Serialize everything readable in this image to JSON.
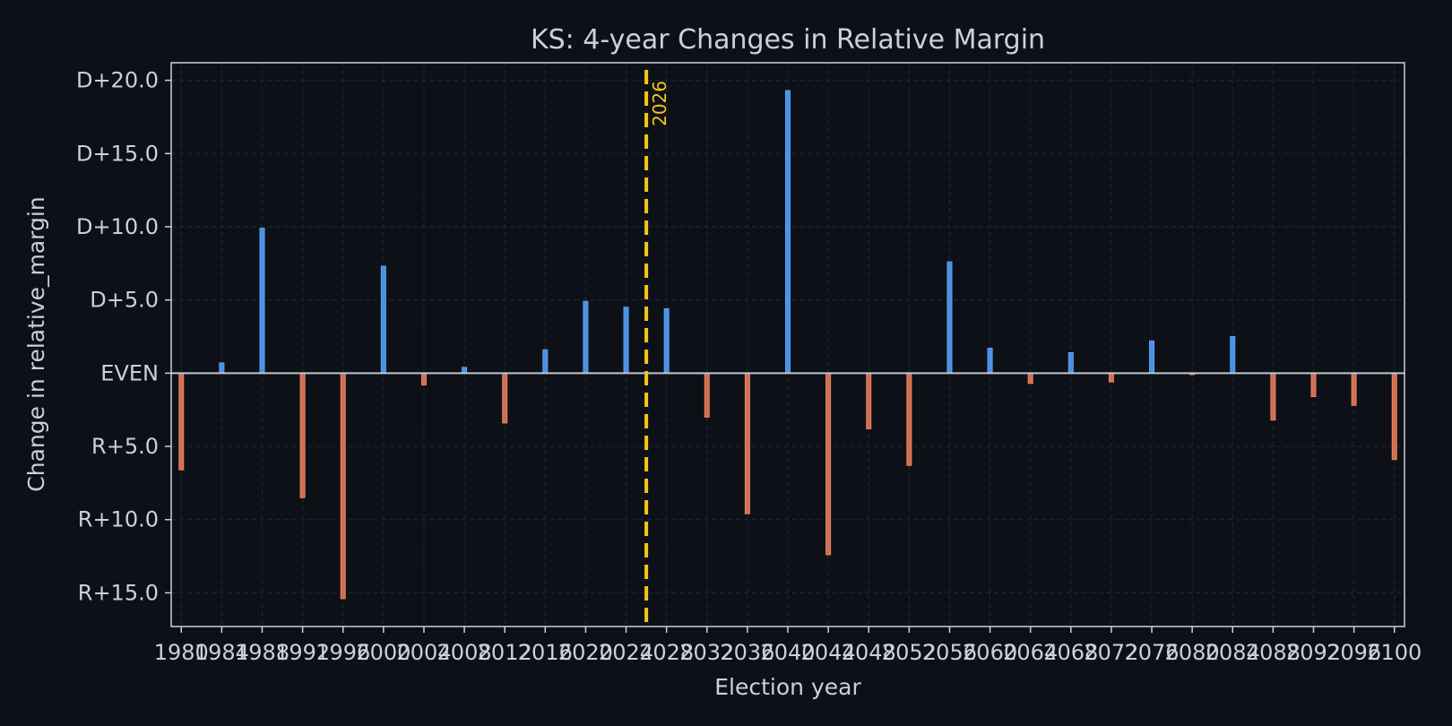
{
  "chart_data": {
    "type": "bar",
    "title": "KS: 4-year Changes in Relative Margin",
    "xlabel": "Election year",
    "ylabel": "Change in relative_margin",
    "x": [
      1980,
      1984,
      1988,
      1992,
      1996,
      2000,
      2004,
      2008,
      2012,
      2016,
      2020,
      2024,
      2028,
      2032,
      2036,
      2040,
      2044,
      2048,
      2052,
      2056,
      2060,
      2064,
      2068,
      2072,
      2076,
      2080,
      2084,
      2088,
      2092,
      2096,
      2100
    ],
    "values": [
      -6.6,
      0.7,
      9.9,
      -8.5,
      -15.4,
      7.3,
      -0.8,
      0.4,
      -3.4,
      1.6,
      4.9,
      4.5,
      4.4,
      -3.0,
      -9.6,
      19.3,
      -12.4,
      -3.8,
      -6.3,
      7.6,
      1.7,
      -0.7,
      1.4,
      -0.6,
      2.2,
      -0.1,
      2.5,
      -3.2,
      -1.6,
      -2.2,
      -5.9
    ],
    "xlim": [
      1979,
      2101
    ],
    "ylim": [
      -17.3,
      21.2
    ],
    "yticks": [
      -15,
      -10,
      -5,
      0,
      5,
      10,
      15,
      20
    ],
    "ytick_labels": [
      "R+15.0",
      "R+10.0",
      "R+5.0",
      "EVEN",
      "D+5.0",
      "D+10.0",
      "D+15.0",
      "D+20.0"
    ],
    "xtick_labels": [
      "1980",
      "1984",
      "1988",
      "1992",
      "1996",
      "2000",
      "2004",
      "2008",
      "2012",
      "2016",
      "2020",
      "2024",
      "2028",
      "2032",
      "2036",
      "2040",
      "2044",
      "2048",
      "2052",
      "2056",
      "2060",
      "2064",
      "2068",
      "2072",
      "2076",
      "2080",
      "2084",
      "2088",
      "2092",
      "2096",
      "2100"
    ],
    "grid": true,
    "marker": {
      "x": 2026,
      "label": "2026"
    },
    "colors": {
      "positive": "#58a6ff",
      "negative": "#f0805f",
      "marker": "#f5c518",
      "background": "#0d1117",
      "axis": "#c9d1d9",
      "text": "#c9d1d9",
      "grid": "#222833",
      "zero_line": "#c0c6ce"
    }
  }
}
